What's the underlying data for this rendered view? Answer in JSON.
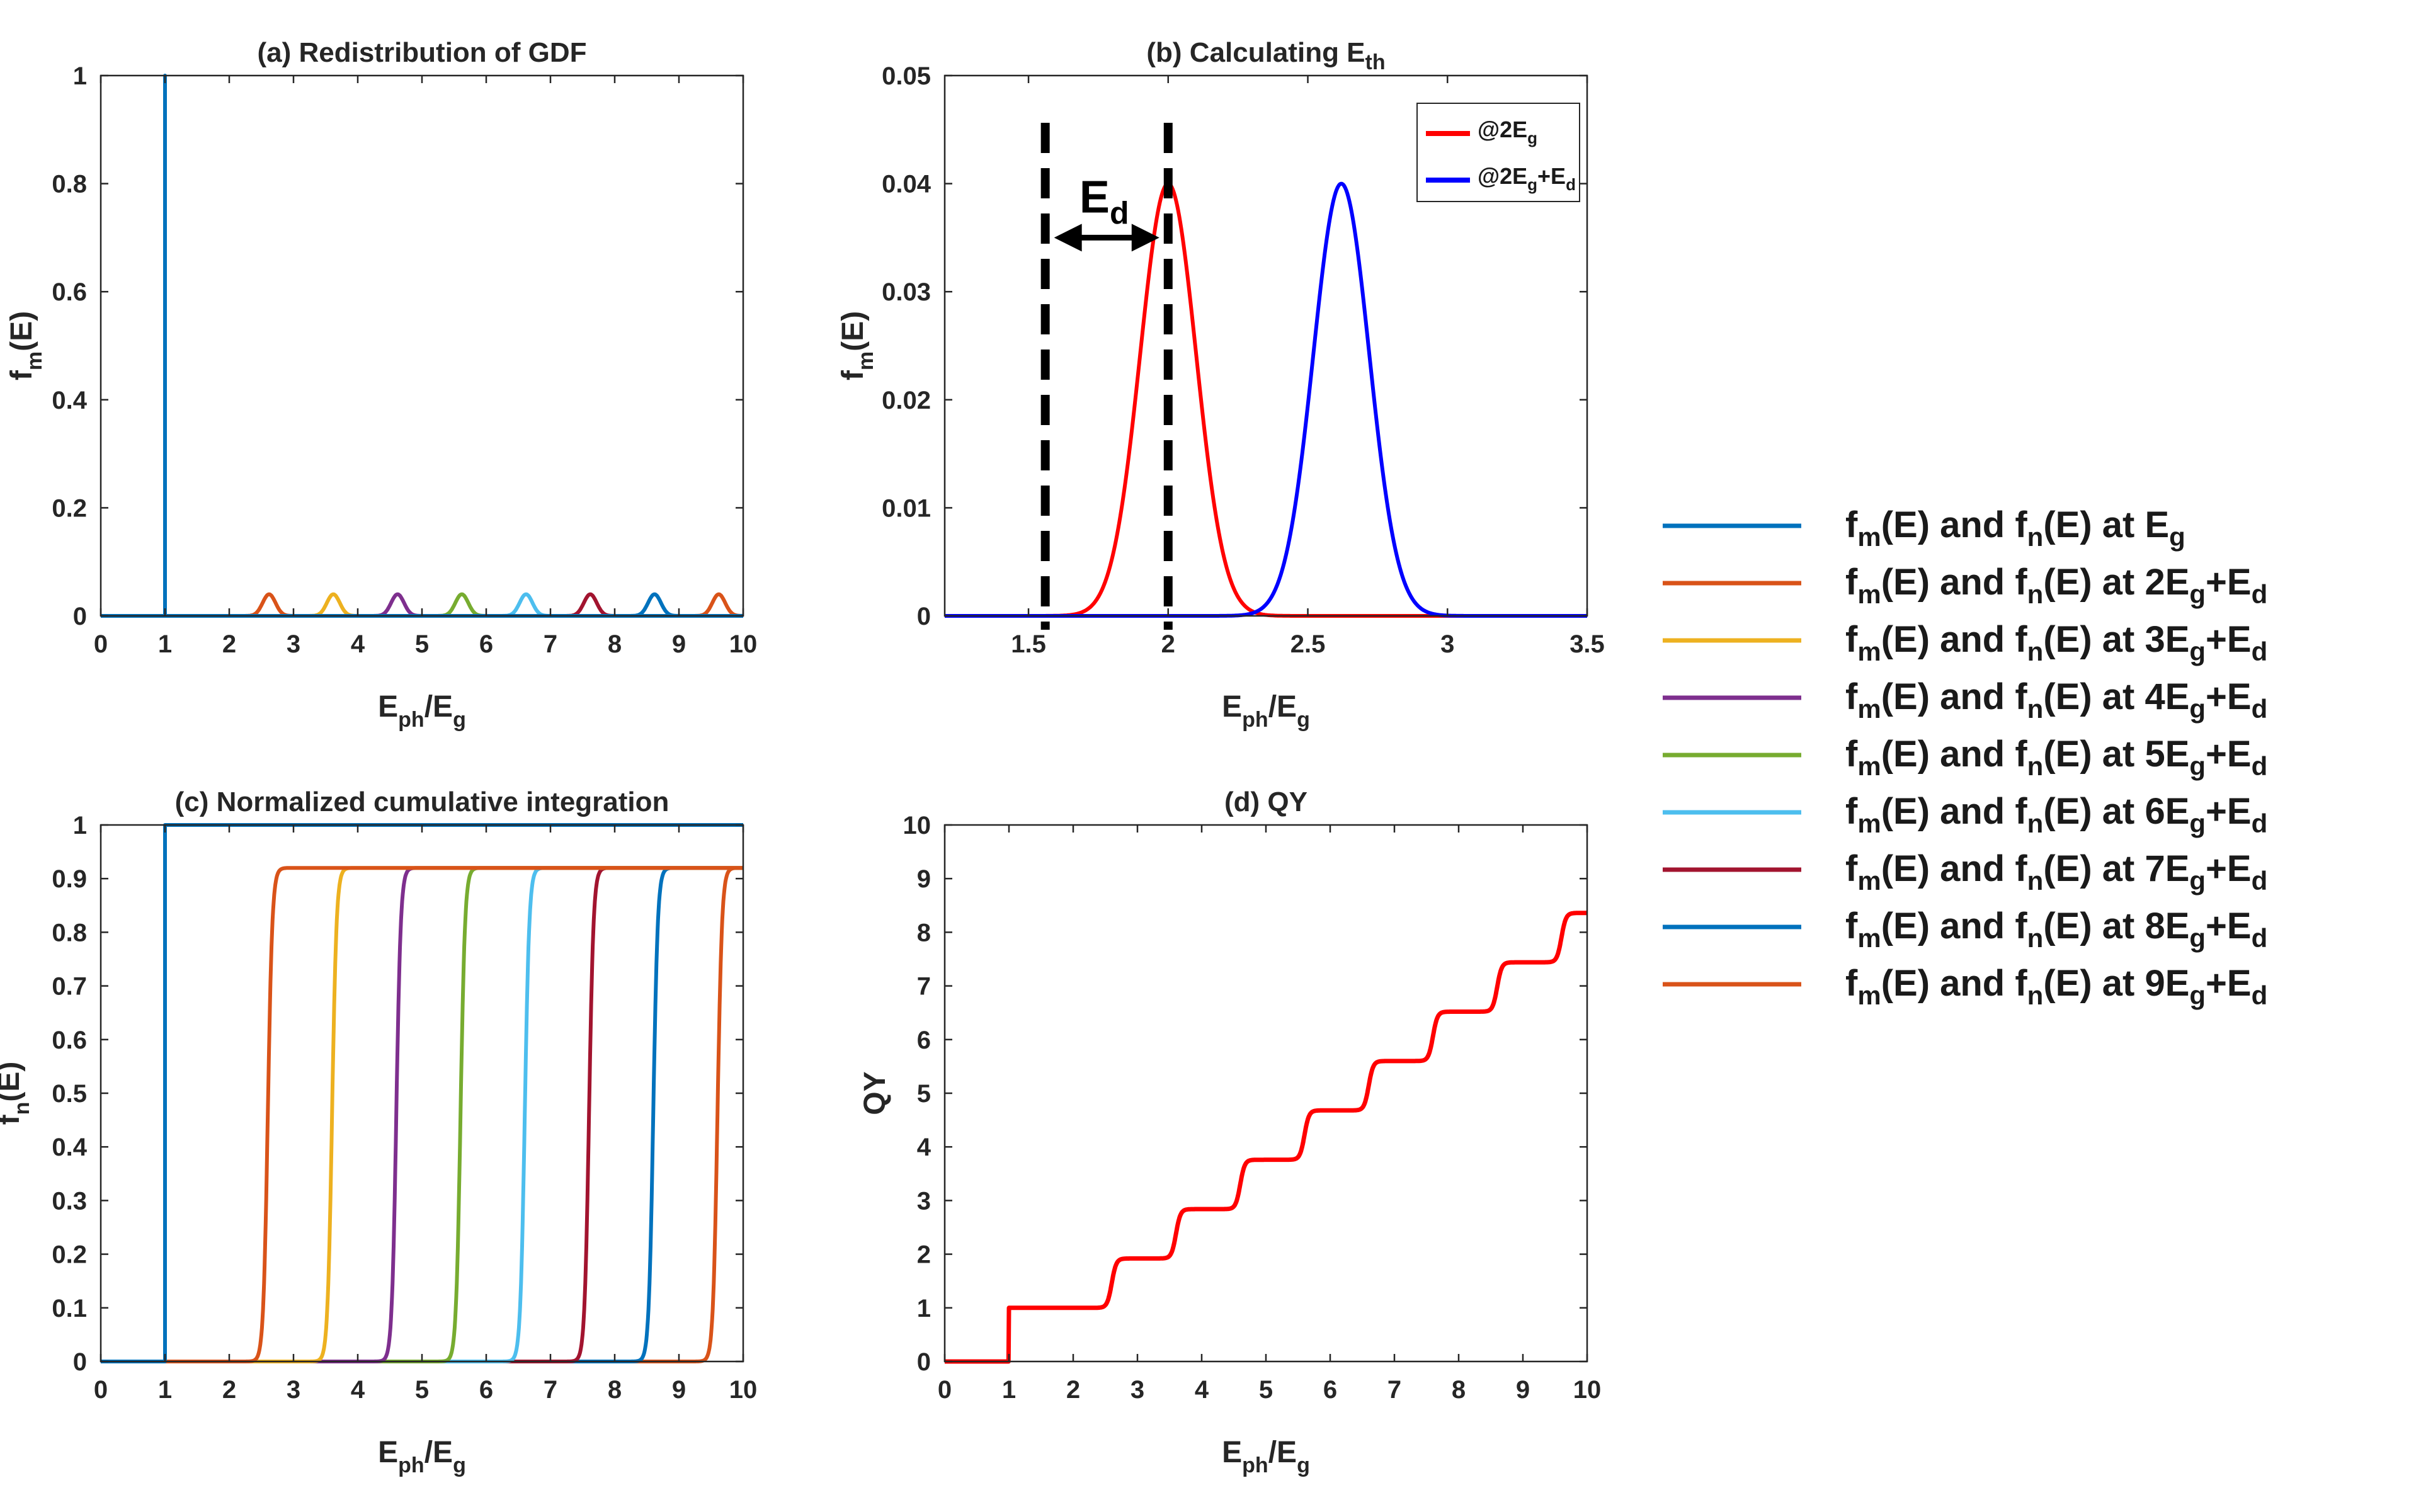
{
  "chart_data": [
    {
      "id": "a",
      "type": "line",
      "title": "(a) Redistribution of GDF",
      "xlabel": {
        "base": "E",
        "sub": "ph",
        "mid": "/E",
        "sub2": "g"
      },
      "ylabel": {
        "base": "f",
        "sub": "m",
        "rest": "(E)"
      },
      "xlim": [
        0,
        10
      ],
      "ylim": [
        0,
        1
      ],
      "xticks": [
        "0",
        "1",
        "2",
        "3",
        "4",
        "5",
        "6",
        "7",
        "8",
        "9",
        "10"
      ],
      "yticks": [
        "0",
        "0.2",
        "0.4",
        "0.6",
        "0.8",
        "1"
      ],
      "series": [
        {
          "name": "fm(E) and fn(E) at Eg",
          "color": "#0072BD",
          "kind": "spike",
          "center": 1,
          "peak": 1
        },
        {
          "name": "fm(E) and fn(E) at 2Eg+Ed",
          "color": "#D95319",
          "kind": "gauss",
          "center": 2.62,
          "peak": 0.04,
          "sigma": 0.1
        },
        {
          "name": "fm(E) and fn(E) at 3Eg+Ed",
          "color": "#EDB120",
          "kind": "gauss",
          "center": 3.62,
          "peak": 0.04,
          "sigma": 0.1
        },
        {
          "name": "fm(E) and fn(E) at 4Eg+Ed",
          "color": "#7E2F8E",
          "kind": "gauss",
          "center": 4.62,
          "peak": 0.04,
          "sigma": 0.1
        },
        {
          "name": "fm(E) and fn(E) at 5Eg+Ed",
          "color": "#77AC30",
          "kind": "gauss",
          "center": 5.62,
          "peak": 0.04,
          "sigma": 0.1
        },
        {
          "name": "fm(E) and fn(E) at 6Eg+Ed",
          "color": "#4DBEEE",
          "kind": "gauss",
          "center": 6.62,
          "peak": 0.04,
          "sigma": 0.1
        },
        {
          "name": "fm(E) and fn(E) at 7Eg+Ed",
          "color": "#A2142F",
          "kind": "gauss",
          "center": 7.62,
          "peak": 0.04,
          "sigma": 0.1
        },
        {
          "name": "fm(E) and fn(E) at 8Eg+Ed",
          "color": "#0072BD",
          "kind": "gauss",
          "center": 8.62,
          "peak": 0.04,
          "sigma": 0.1
        },
        {
          "name": "fm(E) and fn(E) at 9Eg+Ed",
          "color": "#D95319",
          "kind": "gauss",
          "center": 9.62,
          "peak": 0.04,
          "sigma": 0.1
        }
      ]
    },
    {
      "id": "b",
      "type": "line",
      "title": {
        "base": "(b) Calculating E",
        "sub": "th"
      },
      "xlabel": {
        "base": "E",
        "sub": "ph",
        "mid": "/E",
        "sub2": "g"
      },
      "ylabel": {
        "base": "f",
        "sub": "m",
        "rest": "(E)"
      },
      "xlim": [
        1.2,
        3.5
      ],
      "ylim": [
        0,
        0.05
      ],
      "xticks": [
        "1.5",
        "2",
        "2.5",
        "3",
        "3.5"
      ],
      "xtick_values": [
        1.5,
        2,
        2.5,
        3,
        3.5
      ],
      "yticks": [
        "0",
        "0.01",
        "0.02",
        "0.03",
        "0.04",
        "0.05"
      ],
      "series": [
        {
          "name": "@2Eg",
          "color": "#FF0000",
          "center": 2.0,
          "peak": 0.04,
          "sigma": 0.1
        },
        {
          "name": "@2Eg+Ed",
          "color": "#0000FF",
          "center": 2.62,
          "peak": 0.04,
          "sigma": 0.1
        }
      ],
      "dashed_lines_x": [
        1.56,
        2.0
      ],
      "annotation": {
        "base": "E",
        "sub": "d",
        "arrow_from": 1.56,
        "arrow_to": 2.0,
        "y": 0.035
      },
      "legend": [
        {
          "base": "@2E",
          "sub": "g",
          "rest": "",
          "sub2": ""
        },
        {
          "base": "@2E",
          "sub": "g",
          "rest": "+E",
          "sub2": "d"
        }
      ],
      "legend_position": "top-right"
    },
    {
      "id": "c",
      "type": "line",
      "title": "(c) Normalized cumulative integration",
      "xlabel": {
        "base": "E",
        "sub": "ph",
        "mid": "/E",
        "sub2": "g"
      },
      "ylabel": {
        "base": "f",
        "sub": "n",
        "rest": "(E)"
      },
      "xlim": [
        0,
        10
      ],
      "ylim": [
        0,
        1
      ],
      "xticks": [
        "0",
        "1",
        "2",
        "3",
        "4",
        "5",
        "6",
        "7",
        "8",
        "9",
        "10"
      ],
      "yticks": [
        "0",
        "0.1",
        "0.2",
        "0.3",
        "0.4",
        "0.5",
        "0.6",
        "0.7",
        "0.8",
        "0.9",
        "1"
      ],
      "series": [
        {
          "name": "at Eg",
          "color": "#0072BD",
          "kind": "step",
          "center": 1,
          "plateau": 1.0
        },
        {
          "name": "at 2Eg+Ed",
          "color": "#D95319",
          "kind": "sigmoid",
          "center": 2.62,
          "plateau": 0.92
        },
        {
          "name": "at 3Eg+Ed",
          "color": "#EDB120",
          "kind": "sigmoid",
          "center": 3.62,
          "plateau": 0.92
        },
        {
          "name": "at 4Eg+Ed",
          "color": "#7E2F8E",
          "kind": "sigmoid",
          "center": 4.62,
          "plateau": 0.92
        },
        {
          "name": "at 5Eg+Ed",
          "color": "#77AC30",
          "kind": "sigmoid",
          "center": 5.62,
          "plateau": 0.92
        },
        {
          "name": "at 6Eg+Ed",
          "color": "#4DBEEE",
          "kind": "sigmoid",
          "center": 6.62,
          "plateau": 0.92
        },
        {
          "name": "at 7Eg+Ed",
          "color": "#A2142F",
          "kind": "sigmoid",
          "center": 7.62,
          "plateau": 0.92
        },
        {
          "name": "at 8Eg+Ed",
          "color": "#0072BD",
          "kind": "sigmoid",
          "center": 8.62,
          "plateau": 0.92
        },
        {
          "name": "at 9Eg+Ed",
          "color": "#D95319",
          "kind": "sigmoid",
          "center": 9.62,
          "plateau": 0.92
        }
      ]
    },
    {
      "id": "d",
      "type": "line",
      "title": "(d) QY",
      "xlabel": {
        "base": "E",
        "sub": "ph",
        "mid": "/E",
        "sub2": "g"
      },
      "ylabel": {
        "base": "QY",
        "sub": "",
        "rest": ""
      },
      "xlim": [
        0,
        10
      ],
      "ylim": [
        0,
        10
      ],
      "xticks": [
        "0",
        "1",
        "2",
        "3",
        "4",
        "5",
        "6",
        "7",
        "8",
        "9",
        "10"
      ],
      "yticks": [
        "0",
        "1",
        "2",
        "3",
        "4",
        "5",
        "6",
        "7",
        "8",
        "9",
        "10"
      ],
      "series": [
        {
          "name": "QY",
          "color": "#FF0000",
          "steps_at": [
            2.62,
            3.62,
            4.62,
            5.62,
            6.62,
            7.62,
            8.62,
            9.62
          ],
          "step_height": 0.92,
          "base_at": 1,
          "base_value": 1.0
        }
      ]
    }
  ],
  "legend": {
    "items": [
      {
        "color": "#0072BD",
        "p1": "f",
        "s1": "m",
        "p2": "(E) and f",
        "s2": "n",
        "p3": "(E) at E",
        "s3": "g",
        "p4": "",
        "s4": ""
      },
      {
        "color": "#D95319",
        "p1": "f",
        "s1": "m",
        "p2": "(E) and f",
        "s2": "n",
        "p3": "(E) at 2E",
        "s3": "g",
        "p4": "+E",
        "s4": "d"
      },
      {
        "color": "#EDB120",
        "p1": "f",
        "s1": "m",
        "p2": "(E) and f",
        "s2": "n",
        "p3": "(E) at 3E",
        "s3": "g",
        "p4": "+E",
        "s4": "d"
      },
      {
        "color": "#7E2F8E",
        "p1": "f",
        "s1": "m",
        "p2": "(E) and f",
        "s2": "n",
        "p3": "(E) at 4E",
        "s3": "g",
        "p4": "+E",
        "s4": "d"
      },
      {
        "color": "#77AC30",
        "p1": "f",
        "s1": "m",
        "p2": "(E) and f",
        "s2": "n",
        "p3": "(E) at 5E",
        "s3": "g",
        "p4": "+E",
        "s4": "d"
      },
      {
        "color": "#4DBEEE",
        "p1": "f",
        "s1": "m",
        "p2": "(E) and f",
        "s2": "n",
        "p3": "(E) at 6E",
        "s3": "g",
        "p4": "+E",
        "s4": "d"
      },
      {
        "color": "#A2142F",
        "p1": "f",
        "s1": "m",
        "p2": "(E) and f",
        "s2": "n",
        "p3": "(E) at 7E",
        "s3": "g",
        "p4": "+E",
        "s4": "d"
      },
      {
        "color": "#0072BD",
        "p1": "f",
        "s1": "m",
        "p2": "(E) and f",
        "s2": "n",
        "p3": "(E) at 8E",
        "s3": "g",
        "p4": "+E",
        "s4": "d"
      },
      {
        "color": "#D95319",
        "p1": "f",
        "s1": "m",
        "p2": "(E) and f",
        "s2": "n",
        "p3": "(E) at 9E",
        "s3": "g",
        "p4": "+E",
        "s4": "d"
      }
    ]
  }
}
